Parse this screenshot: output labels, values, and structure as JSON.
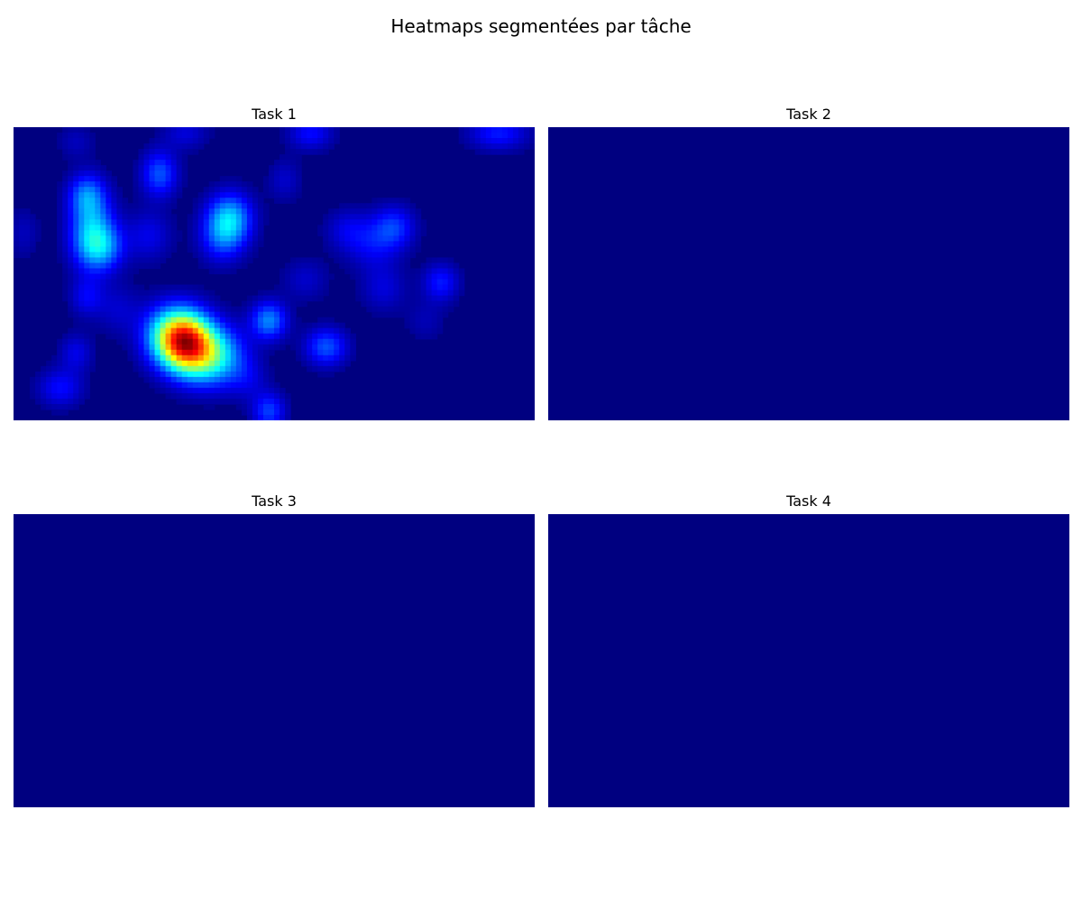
{
  "suptitle": "Heatmaps segmentées par tâche",
  "chart_data": [
    {
      "type": "heatmap",
      "title": "Task 1",
      "colormap": "jet",
      "axes": "off",
      "blobs": [
        {
          "x": 0.33,
          "y": 0.73,
          "sx": 0.034,
          "sy": 0.07,
          "w": 1.0
        },
        {
          "x": 0.38,
          "y": 0.78,
          "sx": 0.042,
          "sy": 0.07,
          "w": 0.55
        },
        {
          "x": 0.29,
          "y": 0.71,
          "sx": 0.034,
          "sy": 0.07,
          "w": 0.35
        },
        {
          "x": 0.15,
          "y": 0.35,
          "sx": 0.03,
          "sy": 0.09,
          "w": 0.38
        },
        {
          "x": 0.17,
          "y": 0.41,
          "sx": 0.03,
          "sy": 0.055,
          "w": 0.28
        },
        {
          "x": 0.14,
          "y": 0.23,
          "sx": 0.024,
          "sy": 0.05,
          "w": 0.25
        },
        {
          "x": 0.415,
          "y": 0.31,
          "sx": 0.03,
          "sy": 0.06,
          "w": 0.4
        },
        {
          "x": 0.4,
          "y": 0.38,
          "sx": 0.03,
          "sy": 0.06,
          "w": 0.22
        },
        {
          "x": 0.28,
          "y": 0.16,
          "sx": 0.024,
          "sy": 0.055,
          "w": 0.28
        },
        {
          "x": 0.49,
          "y": 0.66,
          "sx": 0.024,
          "sy": 0.045,
          "w": 0.35
        },
        {
          "x": 0.6,
          "y": 0.75,
          "sx": 0.028,
          "sy": 0.045,
          "w": 0.28
        },
        {
          "x": 0.73,
          "y": 0.34,
          "sx": 0.028,
          "sy": 0.05,
          "w": 0.22
        },
        {
          "x": 0.69,
          "y": 0.4,
          "sx": 0.036,
          "sy": 0.06,
          "w": 0.15
        },
        {
          "x": 0.82,
          "y": 0.53,
          "sx": 0.024,
          "sy": 0.045,
          "w": 0.2
        },
        {
          "x": 0.71,
          "y": 0.55,
          "sx": 0.03,
          "sy": 0.055,
          "w": 0.12
        },
        {
          "x": 0.49,
          "y": 0.97,
          "sx": 0.022,
          "sy": 0.045,
          "w": 0.25
        },
        {
          "x": 0.09,
          "y": 0.89,
          "sx": 0.03,
          "sy": 0.045,
          "w": 0.18
        },
        {
          "x": 0.12,
          "y": 0.77,
          "sx": 0.022,
          "sy": 0.045,
          "w": 0.14
        },
        {
          "x": 0.14,
          "y": 0.58,
          "sx": 0.022,
          "sy": 0.045,
          "w": 0.15
        },
        {
          "x": 0.2,
          "y": 0.62,
          "sx": 0.03,
          "sy": 0.06,
          "w": 0.1
        },
        {
          "x": 0.26,
          "y": 0.37,
          "sx": 0.03,
          "sy": 0.06,
          "w": 0.14
        },
        {
          "x": 0.57,
          "y": 0.02,
          "sx": 0.03,
          "sy": 0.04,
          "w": 0.18
        },
        {
          "x": 0.93,
          "y": 0.02,
          "sx": 0.04,
          "sy": 0.04,
          "w": 0.2
        },
        {
          "x": 0.33,
          "y": 0.02,
          "sx": 0.03,
          "sy": 0.04,
          "w": 0.12
        },
        {
          "x": 0.52,
          "y": 0.18,
          "sx": 0.022,
          "sy": 0.05,
          "w": 0.1
        },
        {
          "x": 0.56,
          "y": 0.52,
          "sx": 0.03,
          "sy": 0.05,
          "w": 0.1
        },
        {
          "x": 0.64,
          "y": 0.35,
          "sx": 0.03,
          "sy": 0.05,
          "w": 0.12
        },
        {
          "x": 0.02,
          "y": 0.36,
          "sx": 0.02,
          "sy": 0.06,
          "w": 0.08
        },
        {
          "x": 0.79,
          "y": 0.66,
          "sx": 0.026,
          "sy": 0.05,
          "w": 0.07
        },
        {
          "x": 0.45,
          "y": 0.86,
          "sx": 0.026,
          "sy": 0.05,
          "w": 0.1
        },
        {
          "x": 0.12,
          "y": 0.05,
          "sx": 0.024,
          "sy": 0.04,
          "w": 0.08
        }
      ]
    },
    {
      "type": "heatmap",
      "title": "Task 2",
      "colormap": "jet",
      "axes": "off",
      "blobs": []
    },
    {
      "type": "heatmap",
      "title": "Task 3",
      "colormap": "jet",
      "axes": "off",
      "blobs": []
    },
    {
      "type": "heatmap",
      "title": "Task 4",
      "colormap": "jet",
      "axes": "off",
      "blobs": []
    }
  ]
}
